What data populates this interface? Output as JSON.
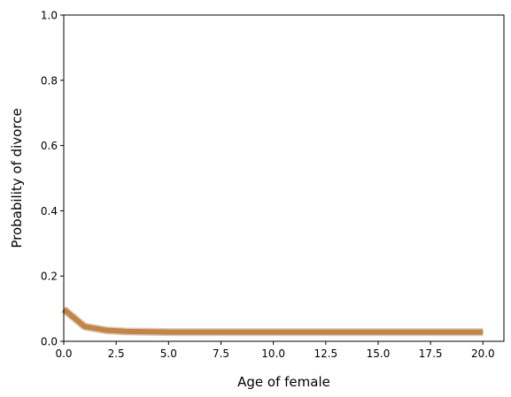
{
  "chart_data": {
    "type": "line",
    "title": "",
    "xlabel": "Age of female",
    "ylabel": "Probability of divorce",
    "xlim": [
      0,
      21
    ],
    "ylim": [
      0,
      1.0
    ],
    "xticks": [
      0.0,
      2.5,
      5.0,
      7.5,
      10.0,
      12.5,
      15.0,
      17.5,
      20.0
    ],
    "xtick_labels": [
      "0.0",
      "2.5",
      "5.0",
      "7.5",
      "10.0",
      "12.5",
      "15.0",
      "17.5",
      "20.0"
    ],
    "yticks": [
      0.0,
      0.2,
      0.4,
      0.6,
      0.8,
      1.0
    ],
    "ytick_labels": [
      "0.0",
      "0.2",
      "0.4",
      "0.6",
      "0.8",
      "1.0"
    ],
    "grid": false,
    "series": [
      {
        "color": "#c8843f",
        "band_color": "#aaaaaa",
        "x": [
          0,
          1,
          2,
          3,
          4,
          5,
          6,
          7,
          8,
          9,
          10,
          11,
          12,
          13,
          14,
          15,
          16,
          17,
          18,
          19,
          20
        ],
        "y": [
          0.098,
          0.045,
          0.034,
          0.03,
          0.029,
          0.028,
          0.028,
          0.028,
          0.028,
          0.028,
          0.028,
          0.028,
          0.028,
          0.028,
          0.028,
          0.028,
          0.028,
          0.028,
          0.028,
          0.028,
          0.028
        ]
      }
    ]
  }
}
